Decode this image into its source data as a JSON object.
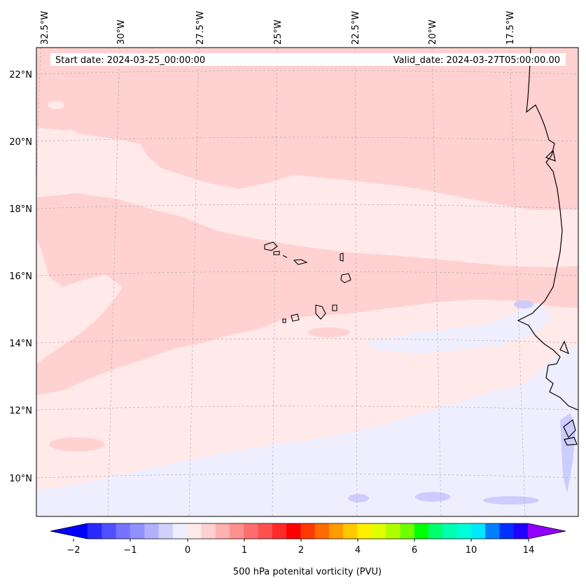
{
  "header": {
    "start_date": "Start date: 2024-03-25_00:00:00",
    "valid_date": "Valid_date: 2024-03-27T05:00:00.00"
  },
  "map": {
    "lon_labels": [
      "32.5°W",
      "30°W",
      "27.5°W",
      "25°W",
      "22.5°W",
      "20°W",
      "17.5°W"
    ],
    "lat_labels": [
      "22°N",
      "20°N",
      "18°N",
      "16°N",
      "14°N",
      "12°N",
      "10°N"
    ],
    "field_colors": {
      "light_pink": "#ffd1d1",
      "very_light_pink": "#ffe9e9",
      "very_light_blue": "#eeeeff",
      "light_blue": "#ccccff"
    }
  },
  "colorbar": {
    "label": "500 hPa potenital vorticity (PVU)",
    "ticks": [
      "−2",
      "−1",
      "0",
      "1",
      "2",
      "4",
      "6",
      "10",
      "14"
    ],
    "colors": [
      "#0000ff",
      "#2a2aff",
      "#5050ff",
      "#7474ff",
      "#9090ff",
      "#b0b0ff",
      "#d0d0ff",
      "#eeeeff",
      "#ffeaea",
      "#ffd0d0",
      "#ffb0b0",
      "#ff9090",
      "#ff6e6e",
      "#ff5050",
      "#ff2a2a",
      "#ff0000",
      "#ff3a00",
      "#ff6a00",
      "#ff9a00",
      "#ffc800",
      "#fff000",
      "#e0ff00",
      "#b0ff00",
      "#70ff00",
      "#00ff00",
      "#00ff70",
      "#00ffb0",
      "#00ffd8",
      "#00e8ff",
      "#0080ff",
      "#0030ff",
      "#2000ff",
      "#9000ff"
    ]
  }
}
